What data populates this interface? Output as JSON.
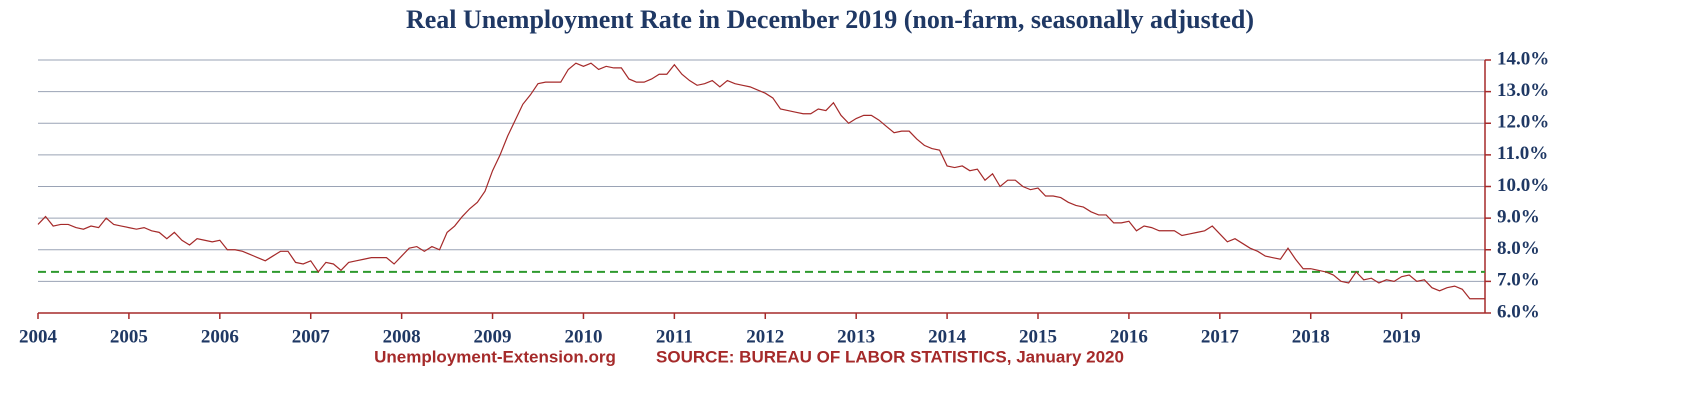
{
  "chart_data": {
    "type": "line",
    "title": "Real Unemployment Rate in December 2019 (non-farm, seasonally adjusted)",
    "footer_left": "Unemployment-Extension.org",
    "footer_right": "SOURCE: BUREAU OF LABOR STATISTICS, January 2020",
    "x": [
      2004,
      2004.083,
      2004.167,
      2004.25,
      2004.333,
      2004.417,
      2004.5,
      2004.583,
      2004.667,
      2004.75,
      2004.833,
      2004.917,
      2005,
      2005.083,
      2005.167,
      2005.25,
      2005.333,
      2005.417,
      2005.5,
      2005.583,
      2005.667,
      2005.75,
      2005.833,
      2005.917,
      2006,
      2006.083,
      2006.167,
      2006.25,
      2006.333,
      2006.417,
      2006.5,
      2006.583,
      2006.667,
      2006.75,
      2006.833,
      2006.917,
      2007,
      2007.083,
      2007.167,
      2007.25,
      2007.333,
      2007.417,
      2007.5,
      2007.583,
      2007.667,
      2007.75,
      2007.833,
      2007.917,
      2008,
      2008.083,
      2008.167,
      2008.25,
      2008.333,
      2008.417,
      2008.5,
      2008.583,
      2008.667,
      2008.75,
      2008.833,
      2008.917,
      2009,
      2009.083,
      2009.167,
      2009.25,
      2009.333,
      2009.417,
      2009.5,
      2009.583,
      2009.667,
      2009.75,
      2009.833,
      2009.917,
      2010,
      2010.083,
      2010.167,
      2010.25,
      2010.333,
      2010.417,
      2010.5,
      2010.583,
      2010.667,
      2010.75,
      2010.833,
      2010.917,
      2011,
      2011.083,
      2011.167,
      2011.25,
      2011.333,
      2011.417,
      2011.5,
      2011.583,
      2011.667,
      2011.75,
      2011.833,
      2011.917,
      2012,
      2012.083,
      2012.167,
      2012.25,
      2012.333,
      2012.417,
      2012.5,
      2012.583,
      2012.667,
      2012.75,
      2012.833,
      2012.917,
      2013,
      2013.083,
      2013.167,
      2013.25,
      2013.333,
      2013.417,
      2013.5,
      2013.583,
      2013.667,
      2013.75,
      2013.833,
      2013.917,
      2014,
      2014.083,
      2014.167,
      2014.25,
      2014.333,
      2014.417,
      2014.5,
      2014.583,
      2014.667,
      2014.75,
      2014.833,
      2014.917,
      2015,
      2015.083,
      2015.167,
      2015.25,
      2015.333,
      2015.417,
      2015.5,
      2015.583,
      2015.667,
      2015.75,
      2015.833,
      2015.917,
      2016,
      2016.083,
      2016.167,
      2016.25,
      2016.333,
      2016.417,
      2016.5,
      2016.583,
      2016.667,
      2016.75,
      2016.833,
      2016.917,
      2017,
      2017.083,
      2017.167,
      2017.25,
      2017.333,
      2017.417,
      2017.5,
      2017.583,
      2017.667,
      2017.75,
      2017.833,
      2017.917,
      2018,
      2018.083,
      2018.167,
      2018.25,
      2018.333,
      2018.417,
      2018.5,
      2018.583,
      2018.667,
      2018.75,
      2018.833,
      2018.917,
      2019,
      2019.083,
      2019.167,
      2019.25,
      2019.333,
      2019.417,
      2019.5,
      2019.583,
      2019.667,
      2019.75,
      2019.833,
      2019.917
    ],
    "series": [
      {
        "color": "#a52a2a",
        "values": [
          8.8,
          9.05,
          8.75,
          8.8,
          8.8,
          8.7,
          8.65,
          8.75,
          8.7,
          9.0,
          8.8,
          8.75,
          8.7,
          8.65,
          8.7,
          8.6,
          8.55,
          8.35,
          8.55,
          8.3,
          8.15,
          8.35,
          8.3,
          8.25,
          8.3,
          8.0,
          8.0,
          7.95,
          7.85,
          7.75,
          7.65,
          7.8,
          7.95,
          7.95,
          7.6,
          7.55,
          7.65,
          7.3,
          7.6,
          7.55,
          7.35,
          7.6,
          7.65,
          7.7,
          7.75,
          7.75,
          7.75,
          7.55,
          7.8,
          8.05,
          8.1,
          7.95,
          8.1,
          8.0,
          8.55,
          8.75,
          9.05,
          9.3,
          9.5,
          9.85,
          10.5,
          11.0,
          11.6,
          12.1,
          12.6,
          12.9,
          13.25,
          13.3,
          13.3,
          13.3,
          13.7,
          13.9,
          13.8,
          13.9,
          13.7,
          13.8,
          13.75,
          13.75,
          13.4,
          13.3,
          13.3,
          13.4,
          13.55,
          13.55,
          13.85,
          13.55,
          13.35,
          13.2,
          13.25,
          13.35,
          13.15,
          13.35,
          13.25,
          13.2,
          13.15,
          13.05,
          12.95,
          12.8,
          12.45,
          12.4,
          12.35,
          12.3,
          12.3,
          12.45,
          12.4,
          12.65,
          12.25,
          12.0,
          12.15,
          12.25,
          12.25,
          12.1,
          11.9,
          11.7,
          11.75,
          11.75,
          11.5,
          11.3,
          11.2,
          11.15,
          10.65,
          10.6,
          10.65,
          10.5,
          10.55,
          10.2,
          10.4,
          10.0,
          10.2,
          10.2,
          10.0,
          9.9,
          9.95,
          9.7,
          9.7,
          9.65,
          9.5,
          9.4,
          9.35,
          9.2,
          9.1,
          9.1,
          8.85,
          8.85,
          8.9,
          8.6,
          8.75,
          8.7,
          8.6,
          8.6,
          8.6,
          8.45,
          8.5,
          8.55,
          8.6,
          8.75,
          8.5,
          8.25,
          8.35,
          8.2,
          8.05,
          7.95,
          7.8,
          7.75,
          7.7,
          8.05,
          7.7,
          7.4,
          7.4,
          7.35,
          7.3,
          7.2,
          7.0,
          6.95,
          7.3,
          7.05,
          7.1,
          6.95,
          7.05,
          7.0,
          7.15,
          7.2,
          7.0,
          7.05,
          6.8,
          6.7,
          6.8,
          6.85,
          6.75,
          6.45,
          6.45,
          6.45
        ]
      }
    ],
    "reference_line": {
      "value": 7.3,
      "color": "#2e9a2e"
    },
    "xlim": [
      2004,
      2019.917
    ],
    "xticks": [
      2004,
      2005,
      2006,
      2007,
      2008,
      2009,
      2010,
      2011,
      2012,
      2013,
      2014,
      2015,
      2016,
      2017,
      2018,
      2019
    ],
    "ylim": [
      6,
      14
    ],
    "yticks": [
      {
        "value": 6,
        "label": "6.0%"
      },
      {
        "value": 7,
        "label": "7.0%"
      },
      {
        "value": 8,
        "label": "8.0%"
      },
      {
        "value": 9,
        "label": "9.0%"
      },
      {
        "value": 10,
        "label": "10.0%"
      },
      {
        "value": 11,
        "label": "11.0%"
      },
      {
        "value": 12,
        "label": "12.0%"
      },
      {
        "value": 13,
        "label": "13.0%"
      },
      {
        "value": 14,
        "label": "14.0%"
      }
    ],
    "grid": true
  }
}
